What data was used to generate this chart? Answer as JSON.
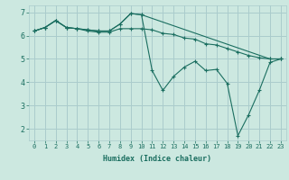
{
  "title": "",
  "xlabel": "Humidex (Indice chaleur)",
  "bg_color": "#cce8e0",
  "grid_color": "#aacccc",
  "line_color": "#1a6e60",
  "xlim": [
    -0.5,
    23.5
  ],
  "ylim": [
    1.5,
    7.3
  ],
  "xticks": [
    0,
    1,
    2,
    3,
    4,
    5,
    6,
    7,
    8,
    9,
    10,
    11,
    12,
    13,
    14,
    15,
    16,
    17,
    18,
    19,
    20,
    21,
    22,
    23
  ],
  "yticks": [
    2,
    3,
    4,
    5,
    6,
    7
  ],
  "lines": [
    {
      "x": [
        0,
        1,
        2,
        3,
        4,
        5,
        6,
        7,
        8,
        9,
        10,
        22,
        23
      ],
      "y": [
        6.2,
        6.35,
        6.65,
        6.35,
        6.3,
        6.25,
        6.2,
        6.2,
        6.5,
        6.95,
        6.9,
        5.0,
        5.0
      ]
    },
    {
      "x": [
        0,
        1,
        2,
        3,
        4,
        5,
        6,
        7,
        8,
        9,
        10,
        11,
        12,
        13,
        14,
        15,
        16,
        17,
        18,
        19,
        20,
        21,
        22,
        23
      ],
      "y": [
        6.2,
        6.35,
        6.65,
        6.35,
        6.3,
        6.25,
        6.2,
        6.2,
        6.5,
        6.95,
        6.9,
        4.5,
        3.65,
        4.25,
        4.65,
        4.9,
        4.5,
        4.55,
        3.95,
        1.7,
        2.6,
        3.65,
        4.85,
        5.0
      ]
    },
    {
      "x": [
        0,
        1,
        2,
        3,
        4,
        5,
        6,
        7,
        8,
        9,
        10,
        11,
        12,
        13,
        14,
        15,
        16,
        17,
        18,
        19,
        20,
        21,
        22,
        23
      ],
      "y": [
        6.2,
        6.35,
        6.65,
        6.35,
        6.3,
        6.2,
        6.15,
        6.15,
        6.3,
        6.3,
        6.3,
        6.25,
        6.1,
        6.05,
        5.9,
        5.85,
        5.65,
        5.6,
        5.45,
        5.3,
        5.15,
        5.05,
        5.0,
        5.0
      ]
    }
  ]
}
